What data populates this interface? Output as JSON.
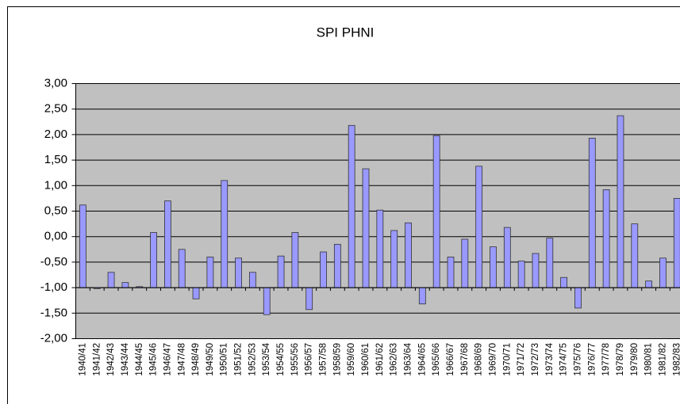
{
  "chart_data": {
    "type": "bar",
    "title": "SPI PHNI",
    "categories": [
      "1940/41",
      "1941/42",
      "1942/43",
      "1943/44",
      "1944/45",
      "1945/46",
      "1946/47",
      "1947/48",
      "1948/49",
      "1949/50",
      "1950/51",
      "1951/52",
      "1952/53",
      "1953/54",
      "1954/55",
      "1955/56",
      "1956/57",
      "1957/58",
      "1958/59",
      "1959/60",
      "1960/61",
      "1961/62",
      "1962/63",
      "1963/64",
      "1964/65",
      "1965/66",
      "1966/67",
      "1967/68",
      "1968/69",
      "1969/70",
      "1970/71",
      "1971/72",
      "1972/73",
      "1973/74",
      "1974/75",
      "1975/76",
      "1976/77",
      "1977/78",
      "1978/79",
      "1979/80",
      "1980/81",
      "1981/82",
      "1982/83"
    ],
    "values": [
      0.62,
      -1.02,
      -0.7,
      -0.9,
      -0.98,
      0.08,
      0.7,
      -0.25,
      -1.22,
      -0.4,
      1.1,
      -0.42,
      -0.7,
      -1.53,
      -0.38,
      0.08,
      -1.43,
      -0.3,
      -0.15,
      2.18,
      1.33,
      0.52,
      0.12,
      0.27,
      -1.32,
      1.98,
      -0.4,
      -0.05,
      1.38,
      -0.2,
      0.18,
      -0.48,
      -0.33,
      -0.03,
      -0.8,
      -1.4,
      1.93,
      0.92,
      2.37,
      0.25,
      -0.87,
      -0.42,
      0.75
    ],
    "color": "#9999ff",
    "baseline": -1,
    "ylim": [
      -2,
      3
    ],
    "yticks": [
      {
        "value": -2,
        "label": "-2,00"
      },
      {
        "value": -1.5,
        "label": "-1,50"
      },
      {
        "value": -1,
        "label": "-1,00"
      },
      {
        "value": -0.5,
        "label": "-0,50"
      },
      {
        "value": 0,
        "label": "0,00"
      },
      {
        "value": 0.5,
        "label": "0,50"
      },
      {
        "value": 1,
        "label": "1,00"
      },
      {
        "value": 1.5,
        "label": "1,50"
      },
      {
        "value": 2,
        "label": "2,00"
      },
      {
        "value": 2.5,
        "label": "2,50"
      },
      {
        "value": 3,
        "label": "3,00"
      }
    ],
    "grid": true
  }
}
